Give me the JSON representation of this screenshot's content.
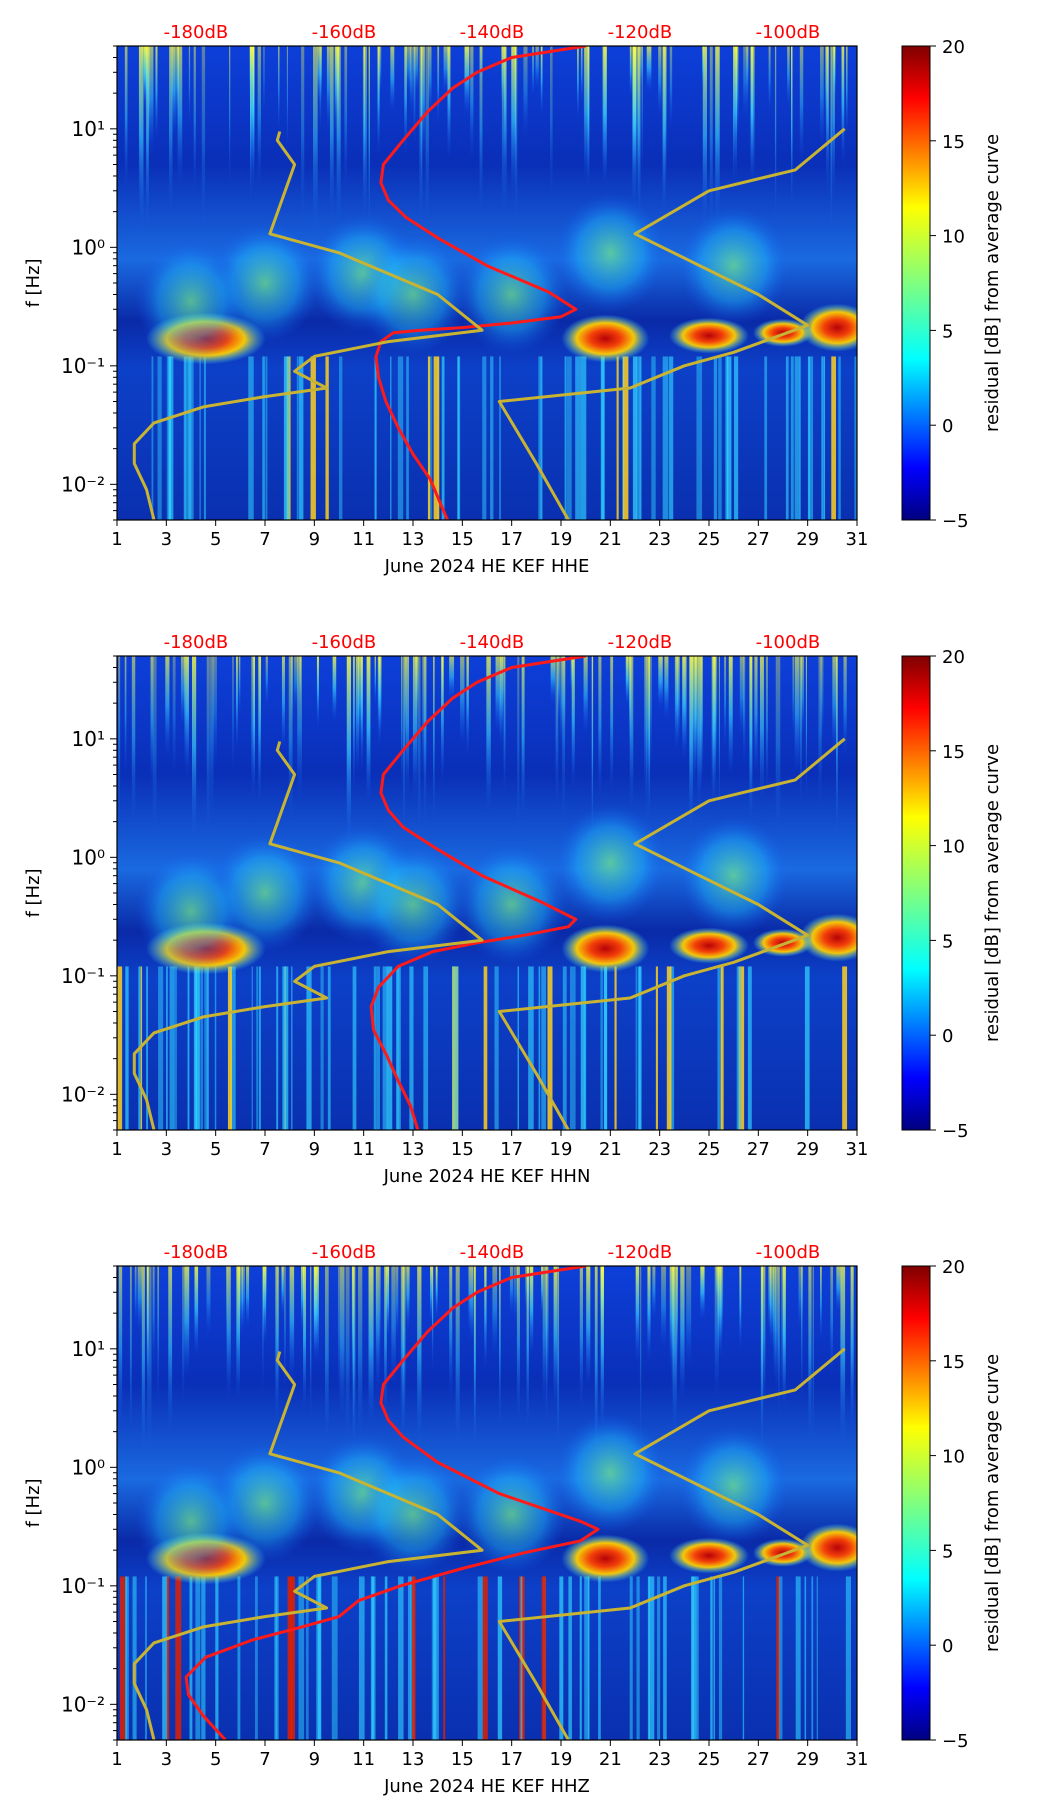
{
  "chart_data": [
    {
      "type": "heatmap",
      "subtype": "spectrogram-residual-with-noise-model-overlays",
      "xlabel": "June 2024 HE KEF  HHE",
      "ylabel": "f [Hz]",
      "xlim": [
        1,
        31
      ],
      "ylim": [
        0.005,
        50
      ],
      "yscale": "log",
      "xticks": [
        "1",
        "3",
        "5",
        "7",
        "9",
        "11",
        "13",
        "15",
        "17",
        "19",
        "21",
        "23",
        "25",
        "27",
        "29",
        "31"
      ],
      "yticks": [
        {
          "value": 0.01,
          "label": "10⁻²"
        },
        {
          "value": 0.1,
          "label": "10⁻¹"
        },
        {
          "value": 1,
          "label": "10⁰"
        },
        {
          "value": 10,
          "label": "10¹"
        }
      ],
      "top_axis_labels": [
        "-180dB",
        "-160dB",
        "-140dB",
        "-120dB",
        "-100dB"
      ],
      "top_axis_color": "#ff0000",
      "colorbar": {
        "label": "residual [dB] from average curve",
        "min": -5,
        "max": 20,
        "ticks": [
          "−5",
          "0",
          "5",
          "10",
          "15",
          "20"
        ]
      },
      "series": [
        {
          "name": "average PSD curve",
          "color": "#ff1a1a",
          "x": [
            14.4,
            14.1,
            13.7,
            13.0,
            12.4,
            11.9,
            11.6,
            11.5,
            11.7,
            12.2,
            13.3,
            15.0,
            17.0,
            19.0,
            19.6,
            18.5,
            16.0,
            14.0,
            12.7,
            12.0,
            11.7,
            11.8,
            12.6,
            13.6,
            14.6,
            15.6,
            17.0,
            20.0
          ],
          "y": [
            0.005,
            0.007,
            0.011,
            0.018,
            0.03,
            0.05,
            0.08,
            0.12,
            0.16,
            0.19,
            0.2,
            0.21,
            0.23,
            0.26,
            0.3,
            0.42,
            0.7,
            1.2,
            1.8,
            2.5,
            3.5,
            5,
            8,
            14,
            22,
            30,
            40,
            50
          ]
        },
        {
          "name": "low noise model (left)",
          "color": "#c8b432",
          "x": [
            2.5,
            2.2,
            1.7,
            1.7,
            2.5,
            4.5,
            7.0,
            9.5,
            8.2,
            9.0,
            12.0,
            15.8,
            14.0,
            10.0,
            7.2,
            8.2,
            7.5,
            7.6
          ],
          "y": [
            0.005,
            0.009,
            0.015,
            0.022,
            0.033,
            0.045,
            0.055,
            0.065,
            0.09,
            0.12,
            0.16,
            0.2,
            0.4,
            0.9,
            1.3,
            5,
            8,
            9.5
          ]
        },
        {
          "name": "high noise model (right)",
          "color": "#c8b432",
          "x": [
            19.3,
            18.0,
            16.5,
            21.8,
            24.0,
            26.0,
            29.0,
            27.0,
            22.0,
            25.0,
            28.5,
            30.5
          ],
          "y": [
            0.005,
            0.015,
            0.05,
            0.065,
            0.1,
            0.13,
            0.22,
            0.4,
            1.3,
            3.0,
            4.5,
            10
          ]
        }
      ]
    },
    {
      "type": "heatmap",
      "subtype": "spectrogram-residual-with-noise-model-overlays",
      "xlabel": "June 2024 HE KEF  HHN",
      "ylabel": "f [Hz]",
      "xlim": [
        1,
        31
      ],
      "ylim": [
        0.005,
        50
      ],
      "yscale": "log",
      "xticks": [
        "1",
        "3",
        "5",
        "7",
        "9",
        "11",
        "13",
        "15",
        "17",
        "19",
        "21",
        "23",
        "25",
        "27",
        "29",
        "31"
      ],
      "yticks": [
        {
          "value": 0.01,
          "label": "10⁻²"
        },
        {
          "value": 0.1,
          "label": "10⁻¹"
        },
        {
          "value": 1,
          "label": "10⁰"
        },
        {
          "value": 10,
          "label": "10¹"
        }
      ],
      "top_axis_labels": [
        "-180dB",
        "-160dB",
        "-140dB",
        "-120dB",
        "-100dB"
      ],
      "top_axis_color": "#ff0000",
      "colorbar": {
        "label": "residual [dB] from average curve",
        "min": -5,
        "max": 20,
        "ticks": [
          "−5",
          "0",
          "5",
          "10",
          "15",
          "20"
        ]
      },
      "series": [
        {
          "name": "average PSD curve",
          "color": "#ff1a1a",
          "x": [
            13.2,
            12.9,
            12.4,
            11.9,
            11.4,
            11.3,
            11.6,
            12.4,
            13.8,
            15.6,
            17.5,
            19.3,
            19.6,
            18.2,
            15.8,
            13.9,
            12.6,
            12.0,
            11.7,
            11.8,
            12.6,
            13.6,
            14.6,
            15.6,
            17.0,
            20.0
          ],
          "y": [
            0.005,
            0.008,
            0.013,
            0.022,
            0.035,
            0.055,
            0.08,
            0.12,
            0.16,
            0.19,
            0.22,
            0.26,
            0.3,
            0.42,
            0.7,
            1.2,
            1.8,
            2.5,
            3.5,
            5,
            8,
            14,
            22,
            30,
            40,
            50
          ]
        },
        {
          "name": "low noise model (left)",
          "color": "#c8b432",
          "x": [
            2.5,
            2.2,
            1.7,
            1.7,
            2.5,
            4.5,
            7.0,
            9.5,
            8.2,
            9.0,
            12.0,
            15.8,
            14.0,
            10.0,
            7.2,
            8.2,
            7.5,
            7.6
          ],
          "y": [
            0.005,
            0.009,
            0.015,
            0.022,
            0.033,
            0.045,
            0.055,
            0.065,
            0.09,
            0.12,
            0.16,
            0.2,
            0.4,
            0.9,
            1.3,
            5,
            8,
            9.5
          ]
        },
        {
          "name": "high noise model (right)",
          "color": "#c8b432",
          "x": [
            19.3,
            18.0,
            16.5,
            21.8,
            24.0,
            26.0,
            29.0,
            27.0,
            22.0,
            25.0,
            28.5,
            30.5
          ],
          "y": [
            0.005,
            0.015,
            0.05,
            0.065,
            0.1,
            0.13,
            0.22,
            0.4,
            1.3,
            3.0,
            4.5,
            10
          ]
        }
      ]
    },
    {
      "type": "heatmap",
      "subtype": "spectrogram-residual-with-noise-model-overlays",
      "xlabel": "June 2024 HE KEF  HHZ",
      "ylabel": "f [Hz]",
      "xlim": [
        1,
        31
      ],
      "ylim": [
        0.005,
        50
      ],
      "yscale": "log",
      "xticks": [
        "1",
        "3",
        "5",
        "7",
        "9",
        "11",
        "13",
        "15",
        "17",
        "19",
        "21",
        "23",
        "25",
        "27",
        "29",
        "31"
      ],
      "yticks": [
        {
          "value": 0.01,
          "label": "10⁻²"
        },
        {
          "value": 0.1,
          "label": "10⁻¹"
        },
        {
          "value": 1,
          "label": "10⁰"
        },
        {
          "value": 10,
          "label": "10¹"
        }
      ],
      "top_axis_labels": [
        "-180dB",
        "-160dB",
        "-140dB",
        "-120dB",
        "-100dB"
      ],
      "top_axis_color": "#ff0000",
      "colorbar": {
        "label": "residual [dB] from average curve",
        "min": -5,
        "max": 20,
        "ticks": [
          "−5",
          "0",
          "5",
          "10",
          "15",
          "20"
        ]
      },
      "series": [
        {
          "name": "average PSD curve",
          "color": "#ff1a1a",
          "x": [
            5.4,
            4.5,
            3.9,
            3.8,
            4.6,
            6.5,
            8.5,
            10.0,
            10.8,
            12.5,
            15.0,
            17.5,
            19.8,
            20.5,
            19.8,
            16.5,
            14.0,
            12.6,
            12.0,
            11.7,
            11.8,
            12.6,
            13.6,
            14.6,
            15.6,
            17.0,
            20.0
          ],
          "y": [
            0.005,
            0.008,
            0.012,
            0.017,
            0.025,
            0.035,
            0.045,
            0.055,
            0.075,
            0.1,
            0.14,
            0.19,
            0.24,
            0.3,
            0.35,
            0.6,
            1.1,
            1.8,
            2.5,
            3.5,
            5,
            8,
            14,
            22,
            30,
            40,
            50
          ]
        },
        {
          "name": "low noise model (left)",
          "color": "#c8b432",
          "x": [
            2.5,
            2.2,
            1.7,
            1.7,
            2.5,
            4.5,
            7.0,
            9.5,
            8.2,
            9.0,
            12.0,
            15.8,
            14.0,
            10.0,
            7.2,
            8.2,
            7.5,
            7.6
          ],
          "y": [
            0.005,
            0.009,
            0.015,
            0.022,
            0.033,
            0.045,
            0.055,
            0.065,
            0.09,
            0.12,
            0.16,
            0.2,
            0.4,
            0.9,
            1.3,
            5,
            8,
            9.5
          ]
        },
        {
          "name": "high noise model (right)",
          "color": "#c8b432",
          "x": [
            19.3,
            18.0,
            16.5,
            21.8,
            24.0,
            26.0,
            29.0,
            27.0,
            22.0,
            25.0,
            28.5,
            30.5
          ],
          "y": [
            0.005,
            0.015,
            0.05,
            0.065,
            0.1,
            0.13,
            0.22,
            0.4,
            1.3,
            3.0,
            4.5,
            10
          ]
        }
      ]
    }
  ]
}
